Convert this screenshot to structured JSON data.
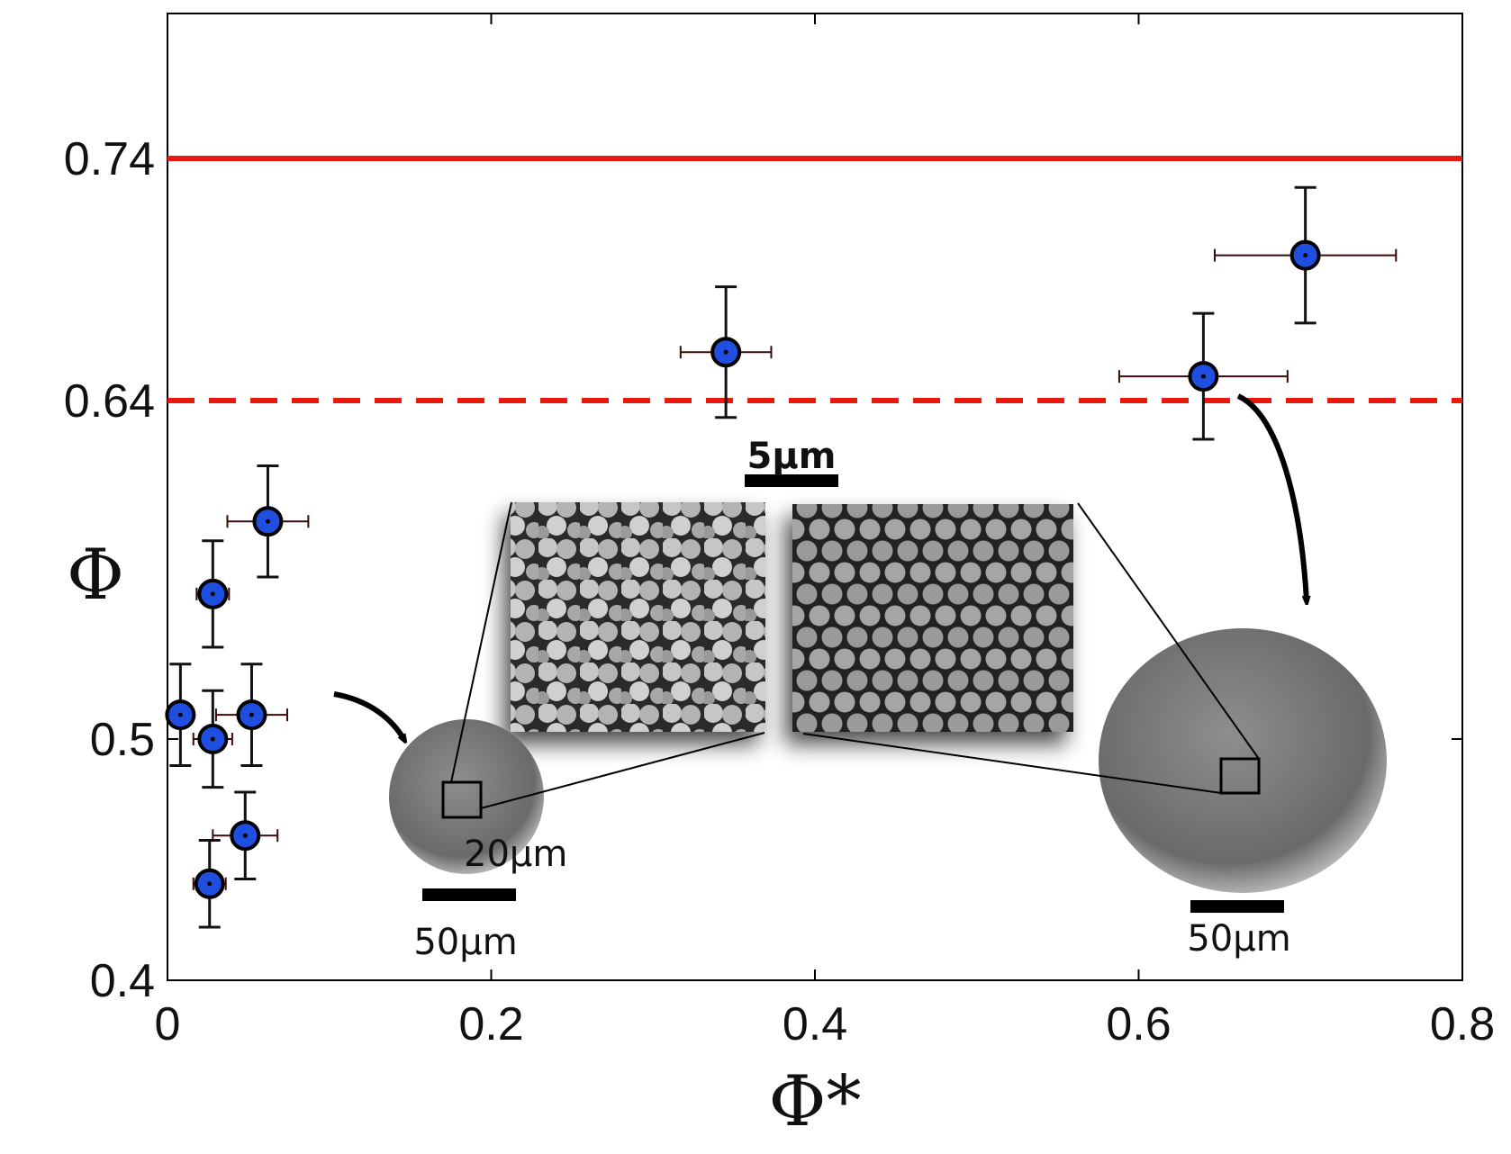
{
  "chart_data": {
    "type": "scatter",
    "xlabel": "Φ*",
    "ylabel": "Φ",
    "xlim": [
      0,
      0.8
    ],
    "ylim": [
      0.4,
      0.8
    ],
    "x_ticks": [
      {
        "value": 0,
        "label": "0"
      },
      {
        "value": 0.2,
        "label": "0.2"
      },
      {
        "value": 0.4,
        "label": "0.4"
      },
      {
        "value": 0.6,
        "label": "0.6"
      },
      {
        "value": 0.8,
        "label": "0.8"
      }
    ],
    "y_ticks": [
      {
        "value": 0.4,
        "label": "0.4"
      },
      {
        "value": 0.5,
        "label": "0.5"
      },
      {
        "value": 0.64,
        "label": "0.64"
      },
      {
        "value": 0.74,
        "label": "0.74"
      }
    ],
    "series": [
      {
        "name": "data",
        "color": "#1f4fe0",
        "points": [
          {
            "x": 0.008,
            "y": 0.51,
            "xerr": 0.006,
            "yerr": 0.021
          },
          {
            "x": 0.028,
            "y": 0.5,
            "xerr": 0.012,
            "yerr": 0.02
          },
          {
            "x": 0.028,
            "y": 0.56,
            "xerr": 0.01,
            "yerr": 0.022
          },
          {
            "x": 0.052,
            "y": 0.51,
            "xerr": 0.022,
            "yerr": 0.021
          },
          {
            "x": 0.062,
            "y": 0.59,
            "xerr": 0.025,
            "yerr": 0.023
          },
          {
            "x": 0.048,
            "y": 0.46,
            "xerr": 0.02,
            "yerr": 0.018
          },
          {
            "x": 0.026,
            "y": 0.44,
            "xerr": 0.01,
            "yerr": 0.018
          },
          {
            "x": 0.345,
            "y": 0.66,
            "xerr": 0.028,
            "yerr": 0.027
          },
          {
            "x": 0.64,
            "y": 0.65,
            "xerr": 0.052,
            "yerr": 0.026
          },
          {
            "x": 0.703,
            "y": 0.7,
            "xerr": 0.056,
            "yerr": 0.028
          }
        ]
      }
    ],
    "reference_lines": [
      {
        "y": 0.74,
        "style": "solid",
        "color": "#e8190d"
      },
      {
        "y": 0.64,
        "style": "dashed",
        "color": "#e8190d"
      }
    ],
    "annotations": [
      {
        "kind": "scale-bar",
        "text": "5µm"
      },
      {
        "kind": "scale-bar",
        "text": "50µm"
      },
      {
        "kind": "scale-bar",
        "text": "50µm"
      }
    ],
    "insets": [
      {
        "name": "small-supraparticle",
        "caption": "20µm"
      },
      {
        "name": "disordered-packing"
      },
      {
        "name": "ordered-packing"
      },
      {
        "name": "large-supraparticle"
      }
    ]
  }
}
